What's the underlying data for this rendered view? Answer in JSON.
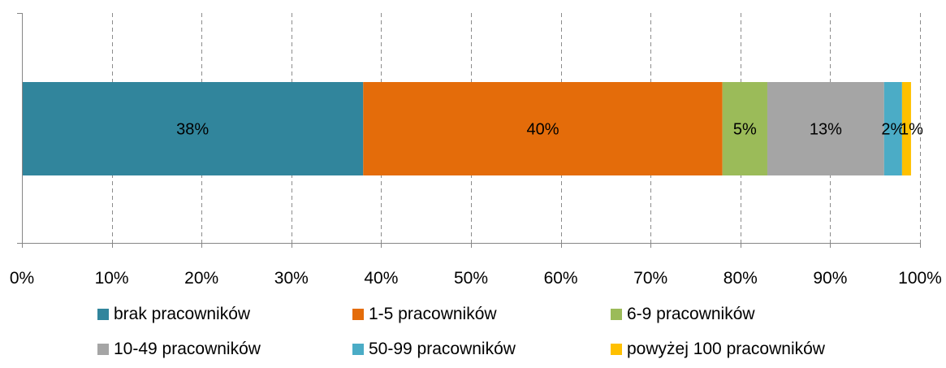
{
  "chart_data": {
    "type": "bar",
    "orientation": "horizontal",
    "stacked": true,
    "percent_scale": true,
    "title": "",
    "xlabel": "",
    "ylabel": "",
    "xlim": [
      0,
      100
    ],
    "grid": "vertical-dashed",
    "legend_position": "bottom",
    "x_ticks": [
      "0%",
      "10%",
      "20%",
      "30%",
      "40%",
      "50%",
      "60%",
      "70%",
      "80%",
      "90%",
      "100%"
    ],
    "series": [
      {
        "name": "brak pracowników",
        "values": [
          38
        ],
        "label": "38%",
        "color": "#31859C"
      },
      {
        "name": "1-5 pracowników",
        "values": [
          40
        ],
        "label": "40%",
        "color": "#E46C0A"
      },
      {
        "name": "6-9 pracowników",
        "values": [
          5
        ],
        "label": "5%",
        "color": "#9BBB59"
      },
      {
        "name": "10-49 pracowników",
        "values": [
          13
        ],
        "label": "13%",
        "color": "#A5A5A5"
      },
      {
        "name": "50-99 pracowników",
        "values": [
          2
        ],
        "label": "2%",
        "color": "#4BACC6"
      },
      {
        "name": "powyżej 100 pracowników",
        "values": [
          1
        ],
        "label": "1%",
        "color": "#FFC000"
      }
    ]
  }
}
